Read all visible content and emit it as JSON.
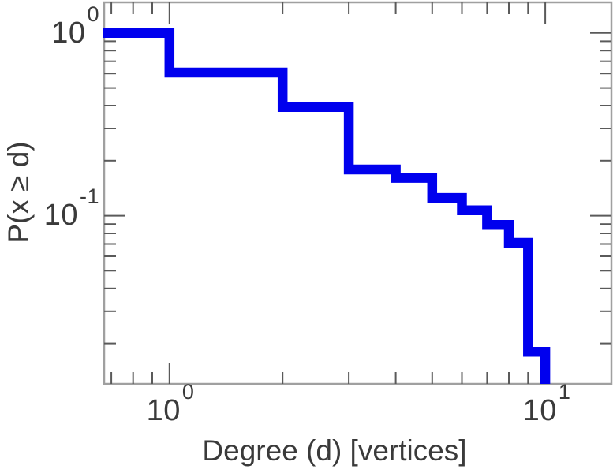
{
  "colors": {
    "line": "#0000ee",
    "frame": "#a0a0a0",
    "tick": "#5a5a5a",
    "text": "#3a3a3a",
    "background": "#ffffff"
  },
  "chart_data": {
    "type": "line",
    "subtype": "step-ccdf",
    "title": "",
    "xlabel": "Degree (d) [vertices]",
    "ylabel": "P(x ≥ d)",
    "x_scale": "log",
    "y_scale": "log",
    "xlim": [
      0.67,
      15
    ],
    "ylim": [
      0.012,
      1.47
    ],
    "grid": false,
    "legend": "none",
    "x": [
      1,
      2,
      3,
      4,
      5,
      6,
      7,
      8,
      9,
      10
    ],
    "ccdf": [
      1.0,
      0.607,
      0.393,
      0.179,
      0.161,
      0.125,
      0.107,
      0.089,
      0.071,
      0.018
    ],
    "line_color": "#0000ee",
    "line_width": 12.5,
    "x_major_ticks": [
      1,
      10
    ],
    "x_minor_ticks": [
      0.7,
      0.8,
      0.9,
      2,
      3,
      4,
      5,
      6,
      7,
      8,
      9
    ],
    "y_major_ticks": [
      1,
      0.1
    ],
    "y_minor_ticks": [
      0.9,
      0.8,
      0.7,
      0.6,
      0.5,
      0.4,
      0.3,
      0.2,
      0.09,
      0.08,
      0.07,
      0.06,
      0.05,
      0.04,
      0.03,
      0.02
    ],
    "x_tick_labels": [
      {
        "base": "10",
        "exp": "0",
        "value": 1
      },
      {
        "base": "10",
        "exp": "1",
        "value": 10
      }
    ],
    "y_tick_labels": [
      {
        "base": "10",
        "exp": "0",
        "value": 1
      },
      {
        "base": "10",
        "exp": "-1",
        "value": 0.1
      }
    ]
  }
}
